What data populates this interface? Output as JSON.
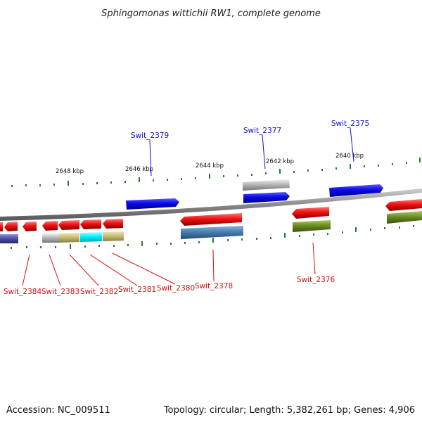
{
  "title": "Sphingomonas wittichii RW1, complete genome",
  "footer": {
    "accession": "Accession: NC_009511",
    "summary": "Topology: circular; Length: 5,382,261 bp; Genes: 4,906"
  },
  "scale_labels": [
    "2648 kbp",
    "2646 kbp",
    "2644 kbp",
    "2642 kbp",
    "2640 kbp"
  ],
  "forward_gene_labels": [
    "Swit_2379",
    "Swit_2377",
    "Swit_2375"
  ],
  "reverse_gene_labels": [
    "Swit_2384",
    "Swit_2383",
    "Swit_2382",
    "Swit_2381",
    "Swit_2380",
    "Swit_2378",
    "Swit_2376"
  ],
  "colors": {
    "forward": "#0a0ae6",
    "reverse": "#ee1111",
    "backbone": "#8a8a8a",
    "tick": "#2a7a2a",
    "grey_feature": "#b8b8b8",
    "steelblue_feature": "#4a7fb0",
    "olive_feature": "#6b8e23",
    "khaki_feature": "#c8bd78",
    "cyan_feature": "#00ffff",
    "slate_feature": "#5050a8"
  }
}
